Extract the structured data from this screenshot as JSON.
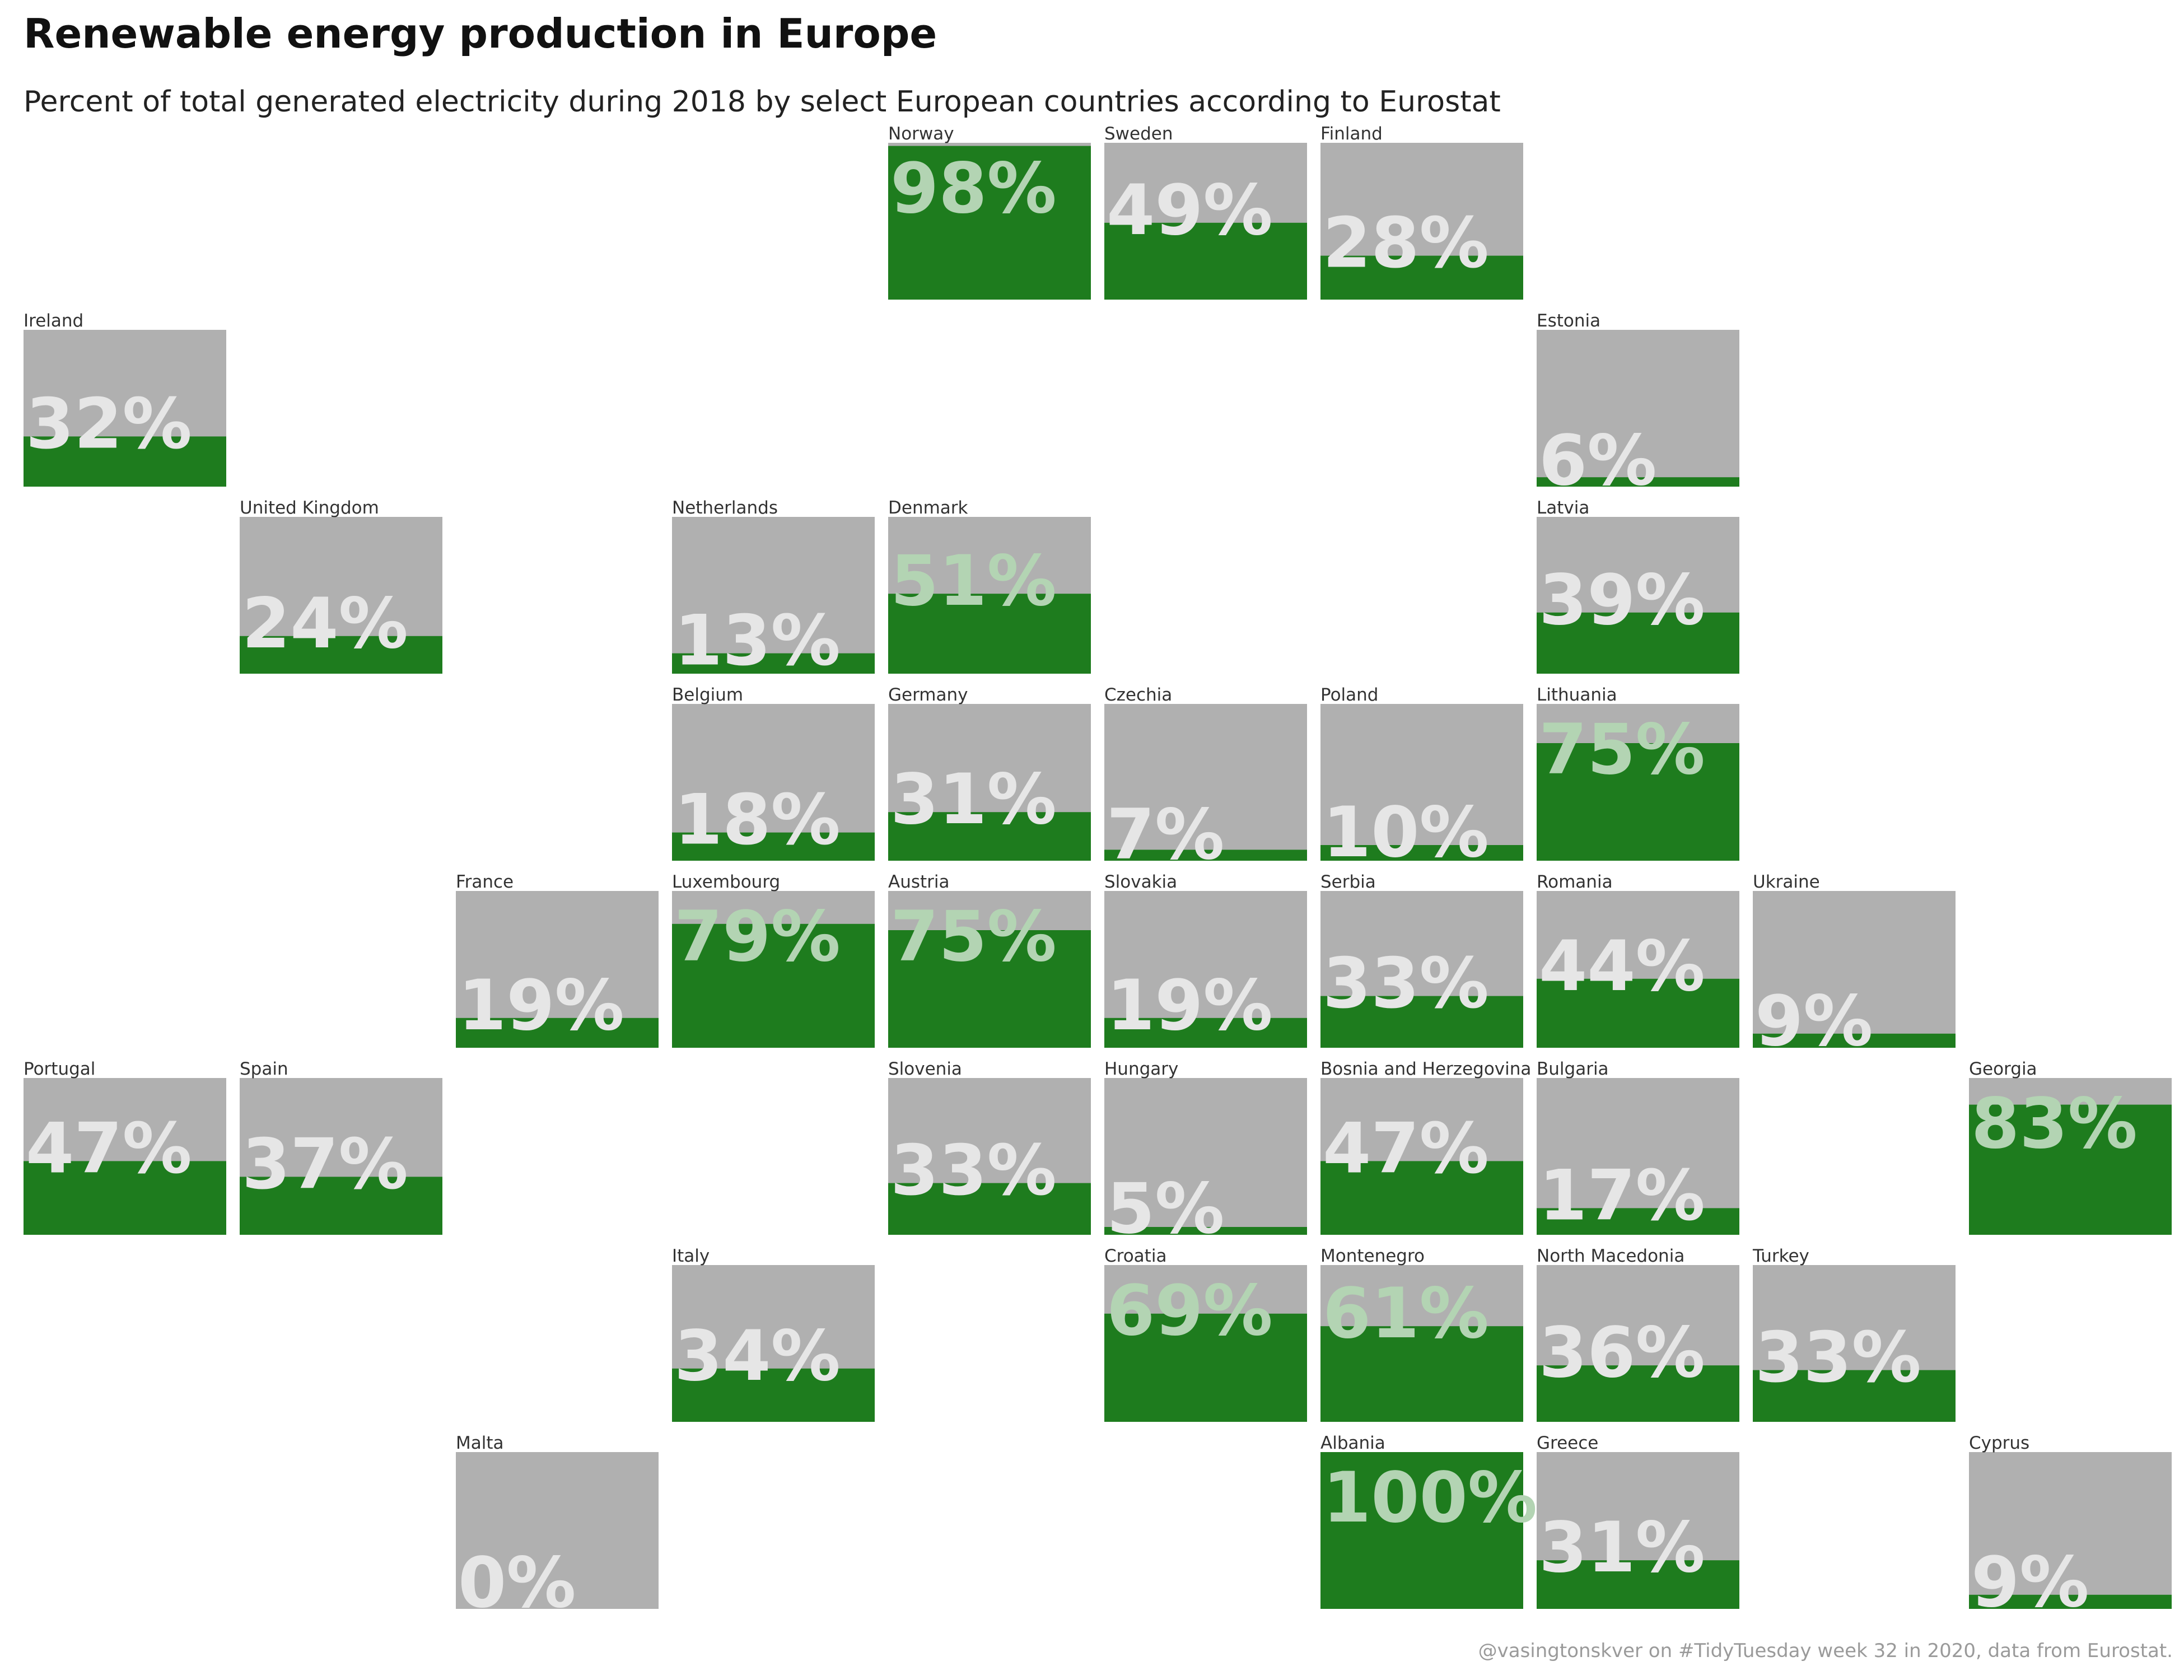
{
  "title": "Renewable energy production in Europe",
  "subtitle": "Percent of total generated electricity during 2018 by select European countries according to Eurostat",
  "caption": "@vasingtonskver on #TidyTuesday week 32 in 2020, data from Eurostat.",
  "colors": {
    "fill": "#1e7c1e",
    "background": "#b0b0b0",
    "label_on_grey": "#e6e6e6",
    "label_on_green": "#b3d4b3"
  },
  "chart_data": {
    "type": "heatmap",
    "title": "Renewable energy production in Europe",
    "subtitle": "Percent of total generated electricity during 2018 by select European countries according to Eurostat",
    "unit": "%",
    "grid": {
      "rows": 9,
      "cols": 10
    },
    "tiles": [
      {
        "country": "Norway",
        "value": 98,
        "row": 0,
        "col": 4
      },
      {
        "country": "Sweden",
        "value": 49,
        "row": 0,
        "col": 5
      },
      {
        "country": "Finland",
        "value": 28,
        "row": 0,
        "col": 6
      },
      {
        "country": "Ireland",
        "value": 32,
        "row": 1,
        "col": 0
      },
      {
        "country": "Estonia",
        "value": 6,
        "row": 1,
        "col": 7
      },
      {
        "country": "United Kingdom",
        "value": 24,
        "row": 2,
        "col": 1
      },
      {
        "country": "Netherlands",
        "value": 13,
        "row": 2,
        "col": 3
      },
      {
        "country": "Denmark",
        "value": 51,
        "row": 2,
        "col": 4
      },
      {
        "country": "Latvia",
        "value": 39,
        "row": 2,
        "col": 7
      },
      {
        "country": "Belgium",
        "value": 18,
        "row": 3,
        "col": 3
      },
      {
        "country": "Germany",
        "value": 31,
        "row": 3,
        "col": 4
      },
      {
        "country": "Czechia",
        "value": 7,
        "row": 3,
        "col": 5
      },
      {
        "country": "Poland",
        "value": 10,
        "row": 3,
        "col": 6
      },
      {
        "country": "Lithuania",
        "value": 75,
        "row": 3,
        "col": 7
      },
      {
        "country": "France",
        "value": 19,
        "row": 4,
        "col": 2
      },
      {
        "country": "Luxembourg",
        "value": 79,
        "row": 4,
        "col": 3
      },
      {
        "country": "Austria",
        "value": 75,
        "row": 4,
        "col": 4
      },
      {
        "country": "Slovakia",
        "value": 19,
        "row": 4,
        "col": 5
      },
      {
        "country": "Serbia",
        "value": 33,
        "row": 4,
        "col": 6
      },
      {
        "country": "Romania",
        "value": 44,
        "row": 4,
        "col": 7
      },
      {
        "country": "Ukraine",
        "value": 9,
        "row": 4,
        "col": 8
      },
      {
        "country": "Portugal",
        "value": 47,
        "row": 5,
        "col": 0
      },
      {
        "country": "Spain",
        "value": 37,
        "row": 5,
        "col": 1
      },
      {
        "country": "Slovenia",
        "value": 33,
        "row": 5,
        "col": 4
      },
      {
        "country": "Hungary",
        "value": 5,
        "row": 5,
        "col": 5
      },
      {
        "country": "Bosnia and Herzegovina",
        "value": 47,
        "row": 5,
        "col": 6
      },
      {
        "country": "Bulgaria",
        "value": 17,
        "row": 5,
        "col": 7
      },
      {
        "country": "Georgia",
        "value": 83,
        "row": 5,
        "col": 9
      },
      {
        "country": "Italy",
        "value": 34,
        "row": 6,
        "col": 3
      },
      {
        "country": "Croatia",
        "value": 69,
        "row": 6,
        "col": 5
      },
      {
        "country": "Montenegro",
        "value": 61,
        "row": 6,
        "col": 6
      },
      {
        "country": "North Macedonia",
        "value": 36,
        "row": 6,
        "col": 7
      },
      {
        "country": "Turkey",
        "value": 33,
        "row": 6,
        "col": 8
      },
      {
        "country": "Malta",
        "value": 0,
        "row": 7,
        "col": 2
      },
      {
        "country": "Albania",
        "value": 100,
        "row": 7,
        "col": 6
      },
      {
        "country": "Greece",
        "value": 31,
        "row": 7,
        "col": 7
      },
      {
        "country": "Cyprus",
        "value": 9,
        "row": 7,
        "col": 9
      }
    ]
  }
}
